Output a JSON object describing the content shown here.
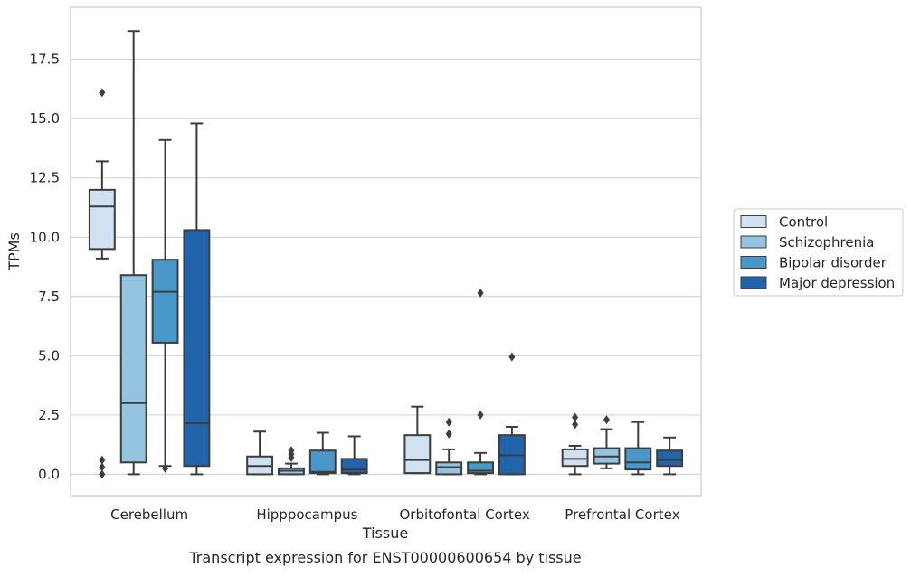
{
  "chart_data": {
    "type": "boxplot",
    "title": "Transcript expression for ENST00000600654 by tissue",
    "xlabel": "Tissue",
    "ylabel": "TPMs",
    "ylim": [
      -0.9,
      19.7
    ],
    "yticks": [
      0.0,
      2.5,
      5.0,
      7.5,
      10.0,
      12.5,
      15.0,
      17.5
    ],
    "ytick_labels": [
      "0.0",
      "2.5",
      "5.0",
      "7.5",
      "10.0",
      "12.5",
      "15.0",
      "17.5"
    ],
    "grid": "horizontal",
    "legend_position": "right",
    "categories": [
      "Cerebellum",
      "Hipppocampus",
      "Orbitofontal Cortex",
      "Prefrontal Cortex"
    ],
    "series": [
      {
        "name": "Control",
        "color": "#d0e1f2",
        "boxes": [
          {
            "whislo": 9.1,
            "q1": 9.5,
            "med": 11.3,
            "q3": 12.0,
            "whishi": 13.2,
            "fliers": [
              16.1,
              0.6,
              0.3,
              0.0
            ]
          },
          {
            "whislo": 0.0,
            "q1": 0.0,
            "med": 0.35,
            "q3": 0.75,
            "whishi": 1.8,
            "fliers": []
          },
          {
            "whislo": 0.05,
            "q1": 0.05,
            "med": 0.6,
            "q3": 1.65,
            "whishi": 2.85,
            "fliers": []
          },
          {
            "whislo": 0.0,
            "q1": 0.35,
            "med": 0.65,
            "q3": 1.05,
            "whishi": 1.2,
            "fliers": [
              2.1,
              2.4
            ]
          }
        ]
      },
      {
        "name": "Schizophrenia",
        "color": "#94c4df",
        "boxes": [
          {
            "whislo": 0.0,
            "q1": 0.5,
            "med": 3.0,
            "q3": 8.4,
            "whishi": 18.7,
            "fliers": []
          },
          {
            "whislo": 0.0,
            "q1": 0.0,
            "med": 0.15,
            "q3": 0.25,
            "whishi": 0.45,
            "fliers": [
              0.7,
              0.85,
              1.0
            ]
          },
          {
            "whislo": 0.0,
            "q1": 0.0,
            "med": 0.3,
            "q3": 0.5,
            "whishi": 1.05,
            "fliers": [
              1.7,
              2.2
            ]
          },
          {
            "whislo": 0.25,
            "q1": 0.45,
            "med": 0.75,
            "q3": 1.1,
            "whishi": 1.9,
            "fliers": [
              2.3
            ]
          }
        ]
      },
      {
        "name": "Bipolar disorder",
        "color": "#4a98c9",
        "boxes": [
          {
            "whislo": 0.35,
            "q1": 5.55,
            "med": 7.7,
            "q3": 9.05,
            "whishi": 14.1,
            "fliers": [
              0.25
            ]
          },
          {
            "whislo": 0.0,
            "q1": 0.05,
            "med": 0.1,
            "q3": 1.0,
            "whishi": 1.75,
            "fliers": []
          },
          {
            "whislo": 0.0,
            "q1": 0.05,
            "med": 0.15,
            "q3": 0.5,
            "whishi": 0.9,
            "fliers": [
              2.5,
              7.65
            ]
          },
          {
            "whislo": 0.0,
            "q1": 0.2,
            "med": 0.5,
            "q3": 1.1,
            "whishi": 2.2,
            "fliers": []
          }
        ]
      },
      {
        "name": "Major depression",
        "color": "#2164ab",
        "boxes": [
          {
            "whislo": 0.0,
            "q1": 0.35,
            "med": 2.15,
            "q3": 10.3,
            "whishi": 14.8,
            "fliers": []
          },
          {
            "whislo": 0.0,
            "q1": 0.05,
            "med": 0.2,
            "q3": 0.65,
            "whishi": 1.6,
            "fliers": []
          },
          {
            "whislo": 0.0,
            "q1": 0.0,
            "med": 0.8,
            "q3": 1.65,
            "whishi": 2.0,
            "fliers": [
              4.95
            ]
          },
          {
            "whislo": 0.0,
            "q1": 0.35,
            "med": 0.6,
            "q3": 1.0,
            "whishi": 1.55,
            "fliers": []
          }
        ]
      }
    ]
  }
}
